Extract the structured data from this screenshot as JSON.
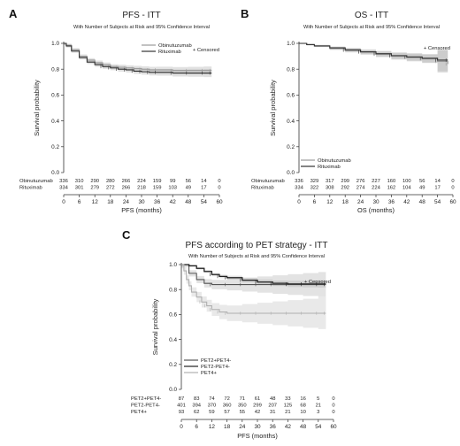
{
  "chart_data": [
    {
      "panel": "A",
      "type": "line",
      "title": "PFS - ITT",
      "subtitle": "With Number of Subjects at Risk and 95% Confidence Interval",
      "xlabel": "PFS (months)",
      "ylabel": "Survival probability",
      "xlim": [
        0,
        60
      ],
      "ylim": [
        0,
        1
      ],
      "xticks": [
        "0",
        "6",
        "12",
        "18",
        "24",
        "30",
        "36",
        "42",
        "48",
        "54",
        "60"
      ],
      "yticks": [
        "0.0",
        "0.2",
        "0.4",
        "0.6",
        "0.8",
        "1.0"
      ],
      "censored_label": "+ Censored",
      "legend_position": "top-center",
      "series": [
        {
          "name": "Obinutuzumab",
          "color": "#9a9a9a",
          "x": [
            0,
            1,
            3,
            6,
            9,
            12,
            15,
            18,
            21,
            24,
            27,
            30,
            33,
            36,
            42,
            48,
            54,
            57
          ],
          "y": [
            1.0,
            0.985,
            0.95,
            0.9,
            0.87,
            0.85,
            0.835,
            0.82,
            0.815,
            0.81,
            0.805,
            0.8,
            0.795,
            0.795,
            0.79,
            0.79,
            0.79,
            0.79
          ],
          "at_risk": [
            "336",
            "310",
            "290",
            "280",
            "266",
            "224",
            "159",
            "99",
            "56",
            "14",
            "0"
          ]
        },
        {
          "name": "Rituximab",
          "color": "#333333",
          "x": [
            0,
            1,
            3,
            6,
            9,
            12,
            15,
            18,
            21,
            24,
            27,
            30,
            33,
            36,
            42,
            48,
            54,
            57
          ],
          "y": [
            1.0,
            0.98,
            0.94,
            0.89,
            0.855,
            0.835,
            0.82,
            0.81,
            0.8,
            0.795,
            0.785,
            0.78,
            0.775,
            0.775,
            0.77,
            0.77,
            0.77,
            0.77
          ],
          "at_risk": [
            "334",
            "301",
            "279",
            "272",
            "266",
            "218",
            "159",
            "103",
            "49",
            "17",
            "0"
          ]
        }
      ]
    },
    {
      "panel": "B",
      "type": "line",
      "title": "OS - ITT",
      "subtitle": "With Number of Subjects at Risk and 95% Confidence Interval",
      "xlabel": "OS (months)",
      "ylabel": "Survival probability",
      "xlim": [
        0,
        60
      ],
      "ylim": [
        0,
        1
      ],
      "xticks": [
        "0",
        "6",
        "12",
        "18",
        "24",
        "30",
        "36",
        "42",
        "48",
        "54",
        "60"
      ],
      "yticks": [
        "0.0",
        "0.2",
        "0.4",
        "0.6",
        "0.8",
        "1.0"
      ],
      "censored_label": "+ Censored",
      "legend_position": "bottom-left",
      "series": [
        {
          "name": "Obinutuzumab",
          "color": "#9a9a9a",
          "x": [
            0,
            3,
            6,
            12,
            18,
            24,
            30,
            36,
            42,
            48,
            54,
            58
          ],
          "y": [
            1.0,
            0.99,
            0.98,
            0.96,
            0.945,
            0.93,
            0.915,
            0.9,
            0.89,
            0.88,
            0.86,
            0.84
          ],
          "at_risk": [
            "336",
            "329",
            "317",
            "299",
            "276",
            "227",
            "160",
            "100",
            "56",
            "14",
            "0"
          ]
        },
        {
          "name": "Rituximab",
          "color": "#333333",
          "x": [
            0,
            3,
            6,
            12,
            18,
            24,
            30,
            36,
            42,
            48,
            54,
            58
          ],
          "y": [
            1.0,
            0.99,
            0.98,
            0.965,
            0.95,
            0.935,
            0.92,
            0.905,
            0.895,
            0.885,
            0.87,
            0.87
          ],
          "at_risk": [
            "334",
            "322",
            "308",
            "292",
            "274",
            "224",
            "162",
            "104",
            "49",
            "17",
            "0"
          ]
        }
      ]
    },
    {
      "panel": "C",
      "type": "line",
      "title": "PFS according to PET strategy - ITT",
      "subtitle": "With Number of Subjects at Risk and 95% Confidence Interval",
      "xlabel": "PFS (months)",
      "ylabel": "Survival probability",
      "xlim": [
        0,
        60
      ],
      "ylim": [
        0,
        1
      ],
      "xticks": [
        "0",
        "6",
        "12",
        "18",
        "24",
        "30",
        "36",
        "42",
        "48",
        "54",
        "60"
      ],
      "yticks": [
        "0.0",
        "0.2",
        "0.4",
        "0.6",
        "0.8",
        "1.0"
      ],
      "censored_label": "+ Censored",
      "legend_position": "bottom-left",
      "series": [
        {
          "name": "PET2+PET4-",
          "color": "#555555",
          "x": [
            0,
            3,
            6,
            9,
            12,
            18,
            24,
            30,
            36,
            42,
            48,
            54,
            57
          ],
          "y": [
            1.0,
            0.93,
            0.88,
            0.85,
            0.84,
            0.84,
            0.84,
            0.84,
            0.84,
            0.84,
            0.84,
            0.84,
            0.84
          ],
          "at_risk": [
            "87",
            "83",
            "74",
            "72",
            "71",
            "61",
            "48",
            "33",
            "16",
            "5",
            "0"
          ]
        },
        {
          "name": "PET2-PET4-",
          "color": "#222222",
          "x": [
            0,
            3,
            6,
            9,
            12,
            15,
            18,
            24,
            30,
            36,
            42,
            48,
            54,
            57
          ],
          "y": [
            1.0,
            0.99,
            0.97,
            0.945,
            0.92,
            0.905,
            0.895,
            0.875,
            0.86,
            0.85,
            0.845,
            0.845,
            0.845,
            0.845
          ],
          "at_risk": [
            "401",
            "394",
            "370",
            "360",
            "350",
            "299",
            "207",
            "125",
            "68",
            "21",
            "0"
          ]
        },
        {
          "name": "PET4+",
          "color": "#b0b0b0",
          "x": [
            0,
            1,
            2,
            3,
            4,
            6,
            8,
            10,
            12,
            15,
            18,
            24,
            30,
            36,
            42,
            48,
            54,
            57
          ],
          "y": [
            1.0,
            0.95,
            0.88,
            0.83,
            0.78,
            0.74,
            0.7,
            0.67,
            0.64,
            0.62,
            0.61,
            0.61,
            0.61,
            0.61,
            0.61,
            0.61,
            0.61,
            0.61
          ],
          "at_risk": [
            "93",
            "62",
            "59",
            "57",
            "55",
            "42",
            "31",
            "21",
            "10",
            "3",
            "0"
          ]
        }
      ]
    }
  ]
}
